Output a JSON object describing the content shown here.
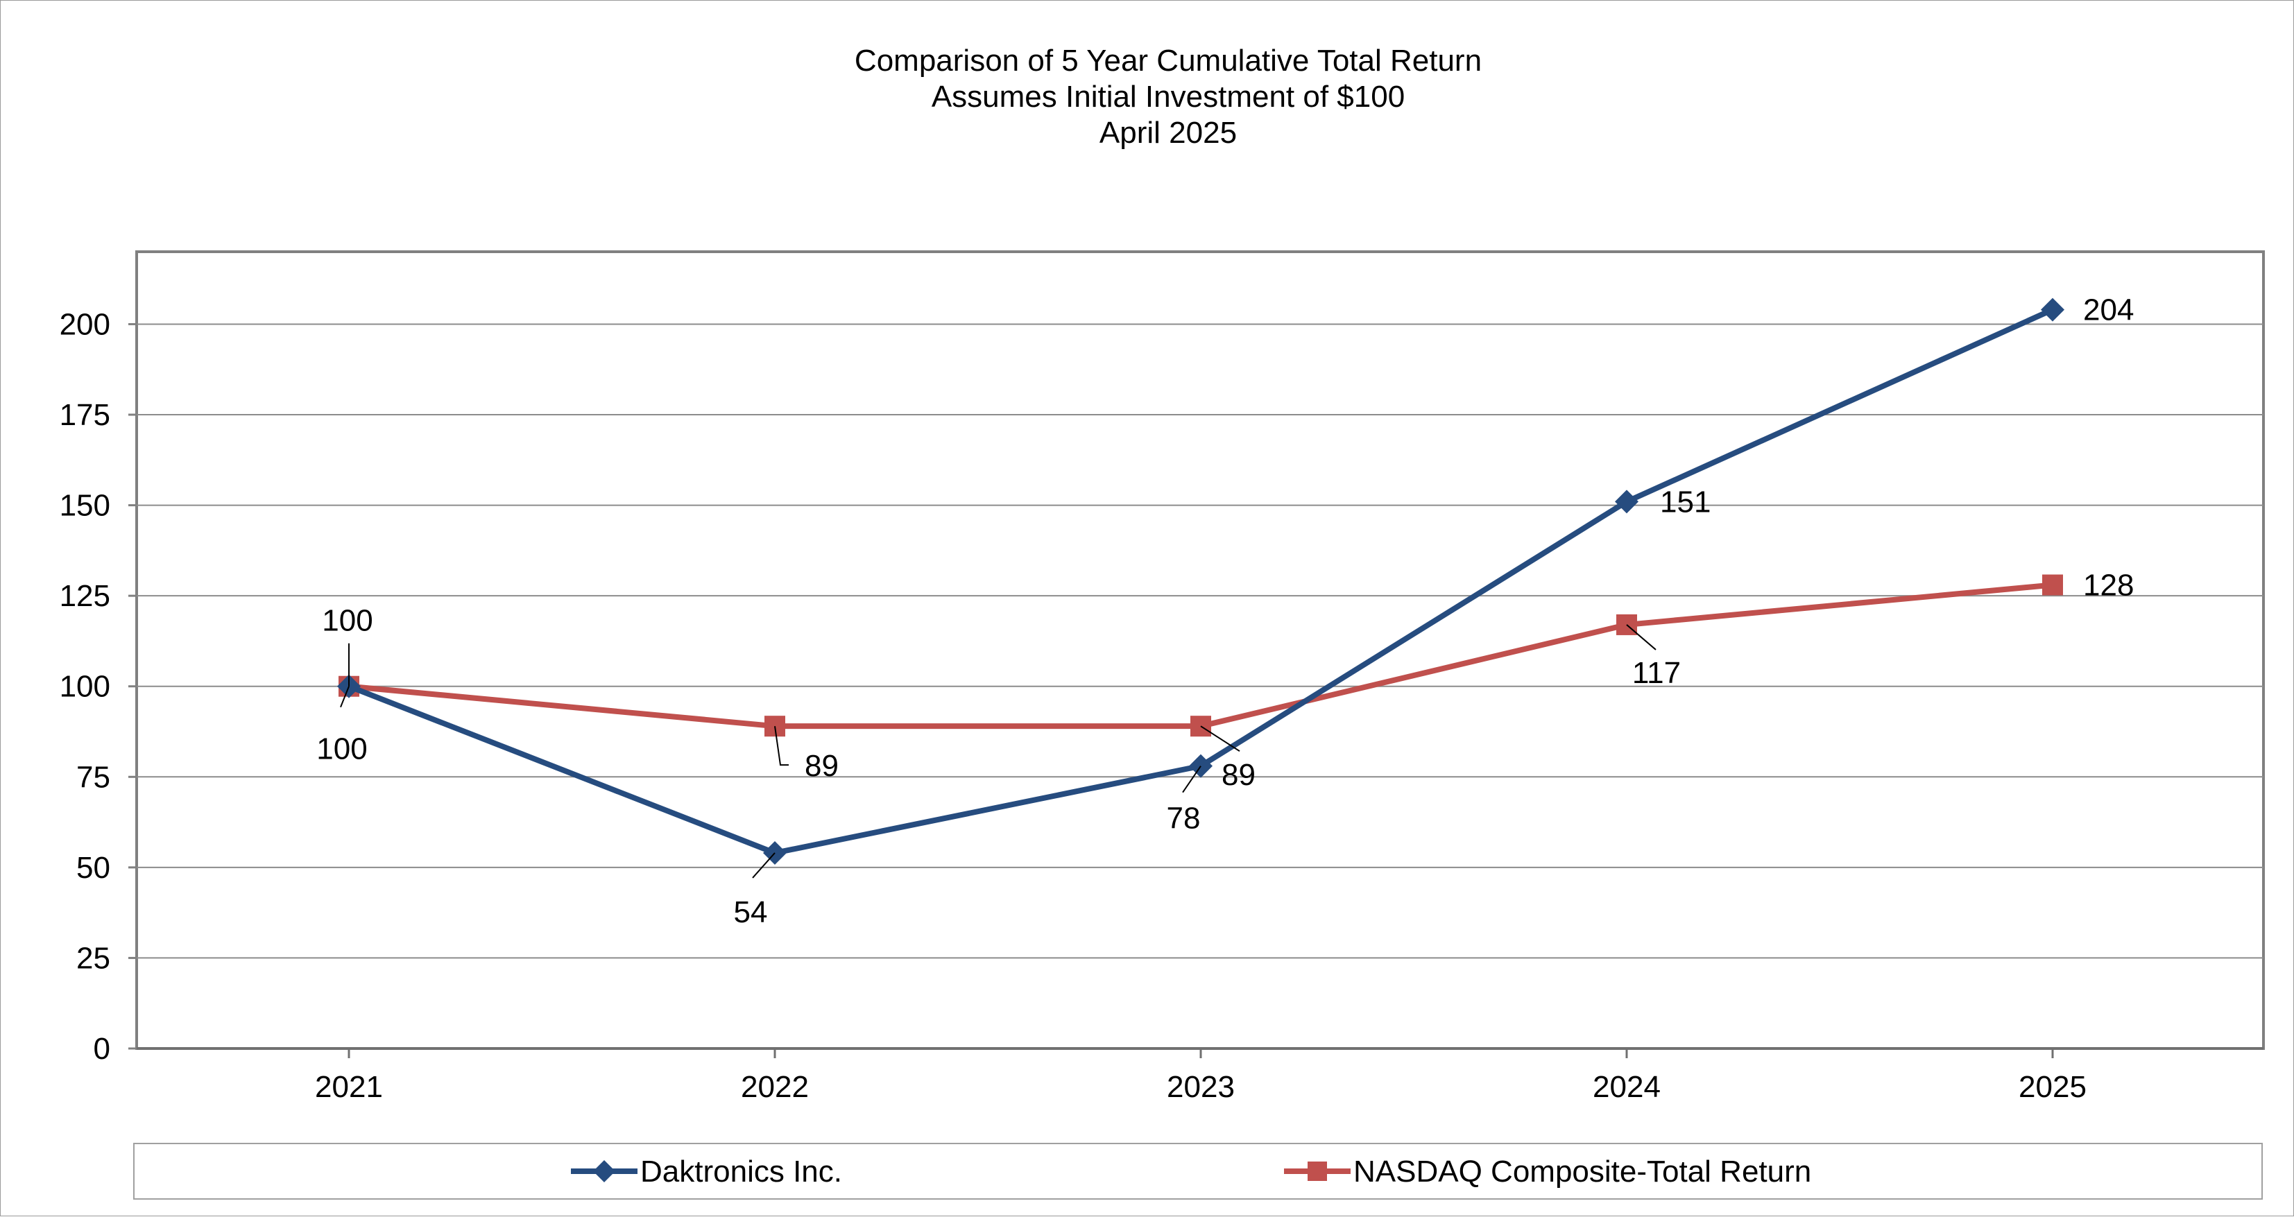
{
  "chart_data": {
    "type": "line",
    "title_lines": [
      "Comparison of 5 Year Cumulative Total Return",
      "Assumes Initial Investment of $100",
      "April 2025"
    ],
    "categories": [
      "2021",
      "2022",
      "2023",
      "2024",
      "2025"
    ],
    "ylim": [
      0,
      220
    ],
    "yticks": [
      0,
      25,
      50,
      75,
      100,
      125,
      150,
      175,
      200
    ],
    "grid": true,
    "legend_position": "bottom",
    "series": [
      {
        "name": "Daktronics Inc.",
        "values": [
          100,
          54,
          78,
          151,
          204
        ],
        "labels": [
          "100",
          "54",
          "78",
          "151",
          "204"
        ],
        "color": "#264C7F",
        "marker": "diamond"
      },
      {
        "name": "NASDAQ Composite-Total Return",
        "values": [
          100,
          89,
          89,
          117,
          128
        ],
        "labels": [
          "100",
          "89",
          "89",
          "117",
          "128"
        ],
        "color": "#C0504D",
        "marker": "square"
      }
    ]
  }
}
